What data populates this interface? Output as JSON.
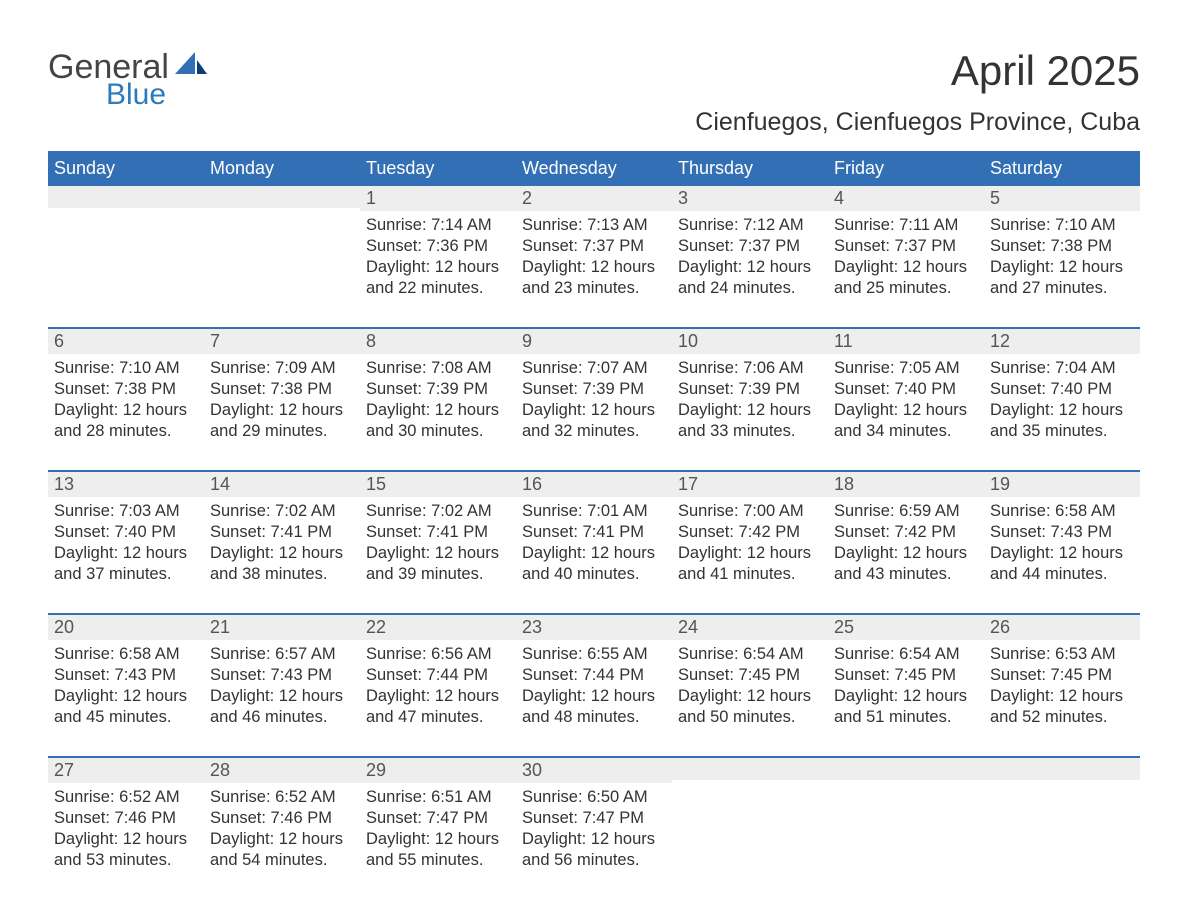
{
  "logo": {
    "line1": "General",
    "line2": "Blue",
    "icon_main_color": "#326fb4",
    "icon_accent_color": "#0a3e77"
  },
  "title": "April 2025",
  "location": "Cienfuegos, Cienfuegos Province, Cuba",
  "colors": {
    "header_bg": "#326fb4",
    "header_text": "#ffffff",
    "daynum_bg": "#eeeeee",
    "daynum_text": "#555555",
    "body_text": "#333333",
    "week_divider": "#326fb4",
    "page_bg": "#ffffff",
    "logo_gray": "#444444",
    "logo_blue": "#2b7bbf"
  },
  "typography": {
    "title_fontsize": 42,
    "location_fontsize": 25,
    "header_fontsize": 18,
    "daynum_fontsize": 18,
    "body_fontsize": 16.5
  },
  "day_names": [
    "Sunday",
    "Monday",
    "Tuesday",
    "Wednesday",
    "Thursday",
    "Friday",
    "Saturday"
  ],
  "weeks": [
    [
      {
        "day": "",
        "sunrise": "",
        "sunset": "",
        "daylight": ""
      },
      {
        "day": "",
        "sunrise": "",
        "sunset": "",
        "daylight": ""
      },
      {
        "day": "1",
        "sunrise": "Sunrise: 7:14 AM",
        "sunset": "Sunset: 7:36 PM",
        "daylight": "Daylight: 12 hours and 22 minutes."
      },
      {
        "day": "2",
        "sunrise": "Sunrise: 7:13 AM",
        "sunset": "Sunset: 7:37 PM",
        "daylight": "Daylight: 12 hours and 23 minutes."
      },
      {
        "day": "3",
        "sunrise": "Sunrise: 7:12 AM",
        "sunset": "Sunset: 7:37 PM",
        "daylight": "Daylight: 12 hours and 24 minutes."
      },
      {
        "day": "4",
        "sunrise": "Sunrise: 7:11 AM",
        "sunset": "Sunset: 7:37 PM",
        "daylight": "Daylight: 12 hours and 25 minutes."
      },
      {
        "day": "5",
        "sunrise": "Sunrise: 7:10 AM",
        "sunset": "Sunset: 7:38 PM",
        "daylight": "Daylight: 12 hours and 27 minutes."
      }
    ],
    [
      {
        "day": "6",
        "sunrise": "Sunrise: 7:10 AM",
        "sunset": "Sunset: 7:38 PM",
        "daylight": "Daylight: 12 hours and 28 minutes."
      },
      {
        "day": "7",
        "sunrise": "Sunrise: 7:09 AM",
        "sunset": "Sunset: 7:38 PM",
        "daylight": "Daylight: 12 hours and 29 minutes."
      },
      {
        "day": "8",
        "sunrise": "Sunrise: 7:08 AM",
        "sunset": "Sunset: 7:39 PM",
        "daylight": "Daylight: 12 hours and 30 minutes."
      },
      {
        "day": "9",
        "sunrise": "Sunrise: 7:07 AM",
        "sunset": "Sunset: 7:39 PM",
        "daylight": "Daylight: 12 hours and 32 minutes."
      },
      {
        "day": "10",
        "sunrise": "Sunrise: 7:06 AM",
        "sunset": "Sunset: 7:39 PM",
        "daylight": "Daylight: 12 hours and 33 minutes."
      },
      {
        "day": "11",
        "sunrise": "Sunrise: 7:05 AM",
        "sunset": "Sunset: 7:40 PM",
        "daylight": "Daylight: 12 hours and 34 minutes."
      },
      {
        "day": "12",
        "sunrise": "Sunrise: 7:04 AM",
        "sunset": "Sunset: 7:40 PM",
        "daylight": "Daylight: 12 hours and 35 minutes."
      }
    ],
    [
      {
        "day": "13",
        "sunrise": "Sunrise: 7:03 AM",
        "sunset": "Sunset: 7:40 PM",
        "daylight": "Daylight: 12 hours and 37 minutes."
      },
      {
        "day": "14",
        "sunrise": "Sunrise: 7:02 AM",
        "sunset": "Sunset: 7:41 PM",
        "daylight": "Daylight: 12 hours and 38 minutes."
      },
      {
        "day": "15",
        "sunrise": "Sunrise: 7:02 AM",
        "sunset": "Sunset: 7:41 PM",
        "daylight": "Daylight: 12 hours and 39 minutes."
      },
      {
        "day": "16",
        "sunrise": "Sunrise: 7:01 AM",
        "sunset": "Sunset: 7:41 PM",
        "daylight": "Daylight: 12 hours and 40 minutes."
      },
      {
        "day": "17",
        "sunrise": "Sunrise: 7:00 AM",
        "sunset": "Sunset: 7:42 PM",
        "daylight": "Daylight: 12 hours and 41 minutes."
      },
      {
        "day": "18",
        "sunrise": "Sunrise: 6:59 AM",
        "sunset": "Sunset: 7:42 PM",
        "daylight": "Daylight: 12 hours and 43 minutes."
      },
      {
        "day": "19",
        "sunrise": "Sunrise: 6:58 AM",
        "sunset": "Sunset: 7:43 PM",
        "daylight": "Daylight: 12 hours and 44 minutes."
      }
    ],
    [
      {
        "day": "20",
        "sunrise": "Sunrise: 6:58 AM",
        "sunset": "Sunset: 7:43 PM",
        "daylight": "Daylight: 12 hours and 45 minutes."
      },
      {
        "day": "21",
        "sunrise": "Sunrise: 6:57 AM",
        "sunset": "Sunset: 7:43 PM",
        "daylight": "Daylight: 12 hours and 46 minutes."
      },
      {
        "day": "22",
        "sunrise": "Sunrise: 6:56 AM",
        "sunset": "Sunset: 7:44 PM",
        "daylight": "Daylight: 12 hours and 47 minutes."
      },
      {
        "day": "23",
        "sunrise": "Sunrise: 6:55 AM",
        "sunset": "Sunset: 7:44 PM",
        "daylight": "Daylight: 12 hours and 48 minutes."
      },
      {
        "day": "24",
        "sunrise": "Sunrise: 6:54 AM",
        "sunset": "Sunset: 7:45 PM",
        "daylight": "Daylight: 12 hours and 50 minutes."
      },
      {
        "day": "25",
        "sunrise": "Sunrise: 6:54 AM",
        "sunset": "Sunset: 7:45 PM",
        "daylight": "Daylight: 12 hours and 51 minutes."
      },
      {
        "day": "26",
        "sunrise": "Sunrise: 6:53 AM",
        "sunset": "Sunset: 7:45 PM",
        "daylight": "Daylight: 12 hours and 52 minutes."
      }
    ],
    [
      {
        "day": "27",
        "sunrise": "Sunrise: 6:52 AM",
        "sunset": "Sunset: 7:46 PM",
        "daylight": "Daylight: 12 hours and 53 minutes."
      },
      {
        "day": "28",
        "sunrise": "Sunrise: 6:52 AM",
        "sunset": "Sunset: 7:46 PM",
        "daylight": "Daylight: 12 hours and 54 minutes."
      },
      {
        "day": "29",
        "sunrise": "Sunrise: 6:51 AM",
        "sunset": "Sunset: 7:47 PM",
        "daylight": "Daylight: 12 hours and 55 minutes."
      },
      {
        "day": "30",
        "sunrise": "Sunrise: 6:50 AM",
        "sunset": "Sunset: 7:47 PM",
        "daylight": "Daylight: 12 hours and 56 minutes."
      },
      {
        "day": "",
        "sunrise": "",
        "sunset": "",
        "daylight": ""
      },
      {
        "day": "",
        "sunrise": "",
        "sunset": "",
        "daylight": ""
      },
      {
        "day": "",
        "sunrise": "",
        "sunset": "",
        "daylight": ""
      }
    ]
  ]
}
